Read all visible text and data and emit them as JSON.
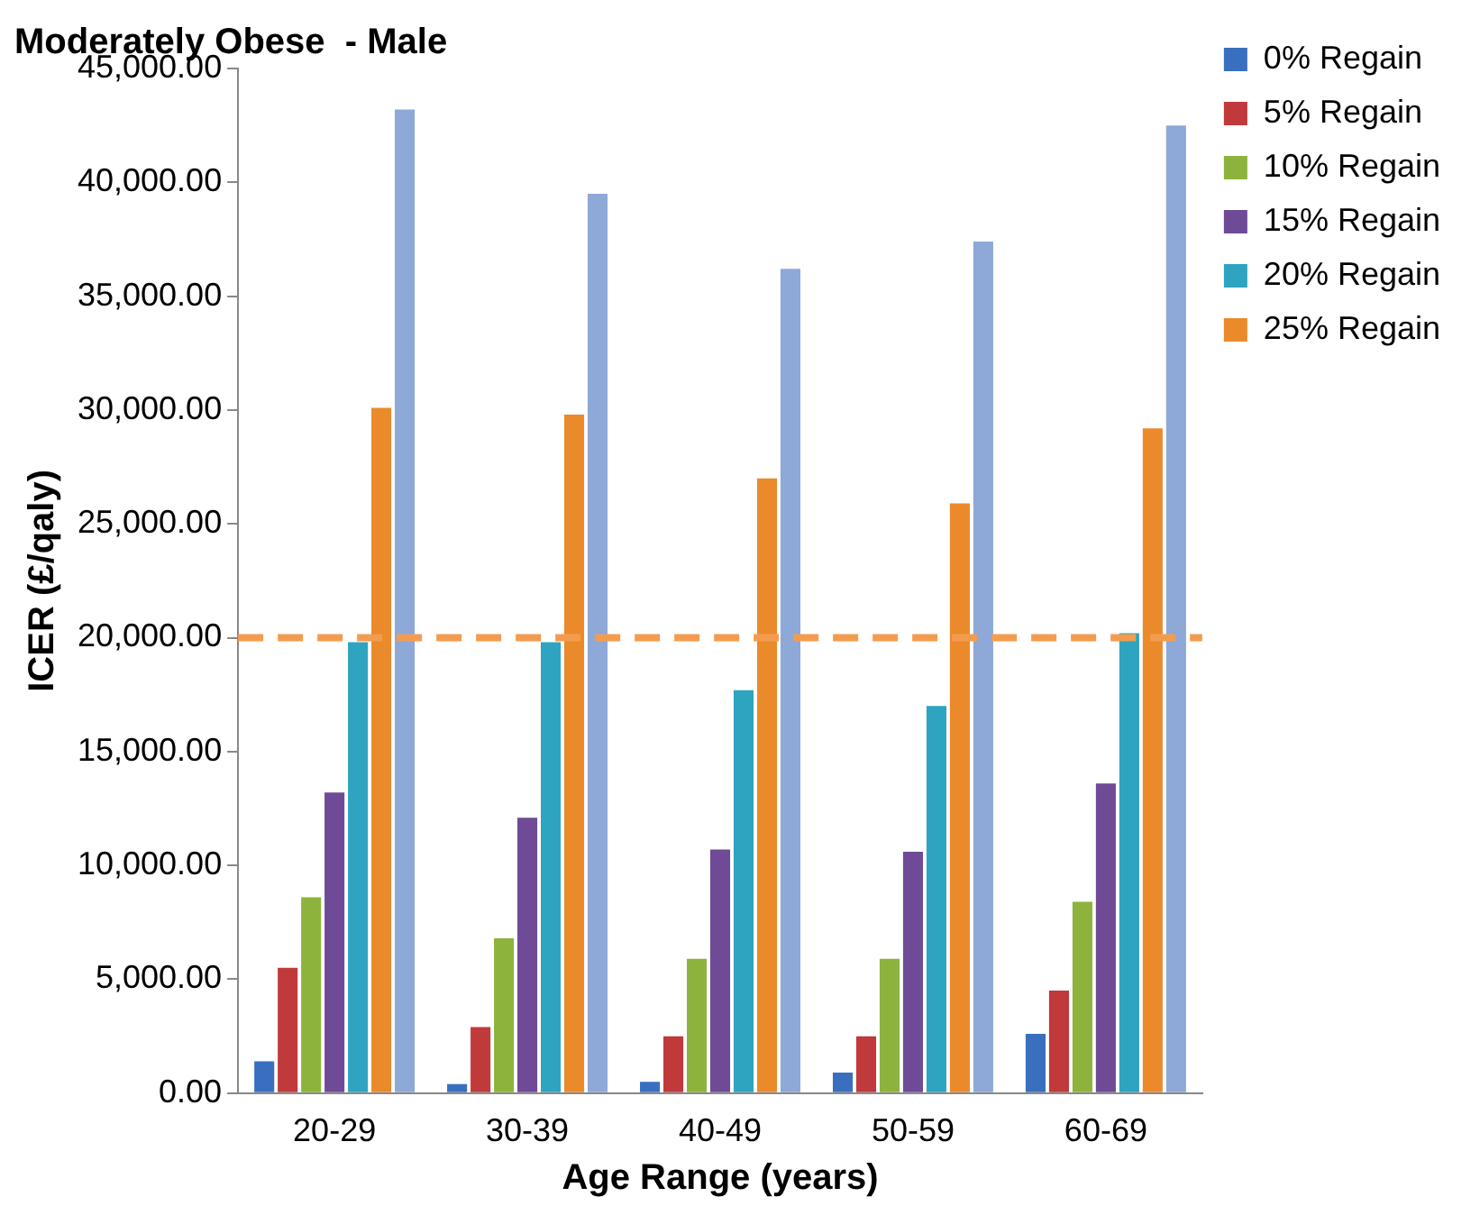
{
  "chart_data": {
    "type": "bar",
    "title": "Moderately Obese  - Male",
    "xlabel": "Age Range (years)",
    "ylabel": "ICER (£/qaly)",
    "categories": [
      "20-29",
      "30-39",
      "40-49",
      "50-59",
      "60-69"
    ],
    "series": [
      {
        "name": "0% Regain",
        "color": "#3a6fbf",
        "values": [
          1400,
          400,
          500,
          900,
          2600
        ]
      },
      {
        "name": "5% Regain",
        "color": "#c0393b",
        "values": [
          5500,
          2900,
          2500,
          2500,
          4500
        ]
      },
      {
        "name": "10% Regain",
        "color": "#8db33c",
        "values": [
          8600,
          6800,
          5900,
          5900,
          8400
        ]
      },
      {
        "name": "15% Regain",
        "color": "#6f4a96",
        "values": [
          13200,
          12100,
          10700,
          10600,
          13600
        ]
      },
      {
        "name": "20% Regain",
        "color": "#2ea4c0",
        "values": [
          19800,
          19800,
          17700,
          17000,
          20200
        ]
      },
      {
        "name": "25% Regain",
        "color": "#ea8a2a",
        "values": [
          30100,
          29800,
          27000,
          25900,
          29200
        ]
      },
      {
        "color": "#8ea8d8",
        "values": [
          43200,
          39500,
          36200,
          37400,
          42500
        ]
      }
    ],
    "ylim": [
      0,
      45000
    ],
    "yticks": [
      {
        "value": 0,
        "label": "0.00"
      },
      {
        "value": 5000,
        "label": "5,000.00"
      },
      {
        "value": 10000,
        "label": "10,000.00"
      },
      {
        "value": 15000,
        "label": "15,000.00"
      },
      {
        "value": 20000,
        "label": "20,000.00"
      },
      {
        "value": 25000,
        "label": "25,000.00"
      },
      {
        "value": 30000,
        "label": "30,000.00"
      },
      {
        "value": 35000,
        "label": "35,000.00"
      },
      {
        "value": 40000,
        "label": "40,000.00"
      },
      {
        "value": 45000,
        "label": "45,000.00"
      }
    ],
    "ref_lines": [
      {
        "axis": "y",
        "value": 20000,
        "color": "#f39c4f",
        "line_style": "dashed"
      }
    ],
    "grid": false,
    "legend": "top right"
  }
}
